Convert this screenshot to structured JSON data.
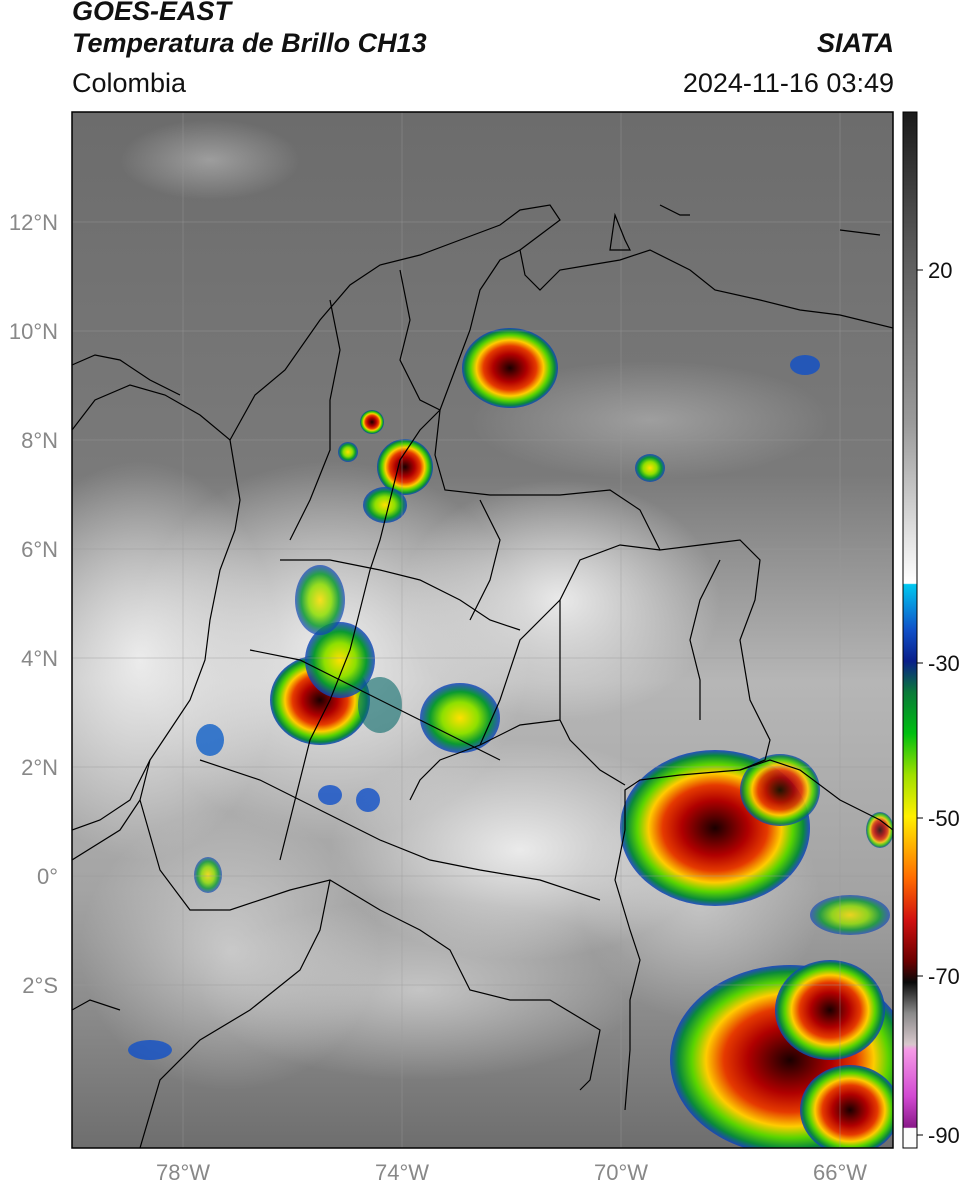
{
  "header": {
    "satellite": "GOES-EAST",
    "product": "Temperatura de Brillo CH13",
    "organization": "SIATA",
    "region": "Colombia",
    "timestamp": "2024-11-16 03:49"
  },
  "map": {
    "lat_labels": [
      "12°N",
      "10°N",
      "8°N",
      "6°N",
      "4°N",
      "2°N",
      "0°",
      "2°S"
    ],
    "lon_labels": [
      "78°W",
      "74°W",
      "70°W",
      "66°W"
    ]
  },
  "colorbar": {
    "tick_labels": [
      "20",
      "-30",
      "-50",
      "-70",
      "-90"
    ],
    "colors": [
      "#fdfdfd",
      "#8a1a8a",
      "#d24ad2",
      "#f59ae6",
      "#d8c8cc",
      "#8a8a8a",
      "#0a0a0a",
      "#6a0000",
      "#d11010",
      "#ff6a00",
      "#ffc400",
      "#fff000",
      "#a0e000",
      "#00c010",
      "#0a7a3a",
      "#0a1f8a",
      "#1050c8",
      "#00a0e0",
      "#00c8f0",
      "#ffffff",
      "#dcdcdc",
      "#9a9a9a",
      "#555555",
      "#1a1a1a"
    ]
  }
}
